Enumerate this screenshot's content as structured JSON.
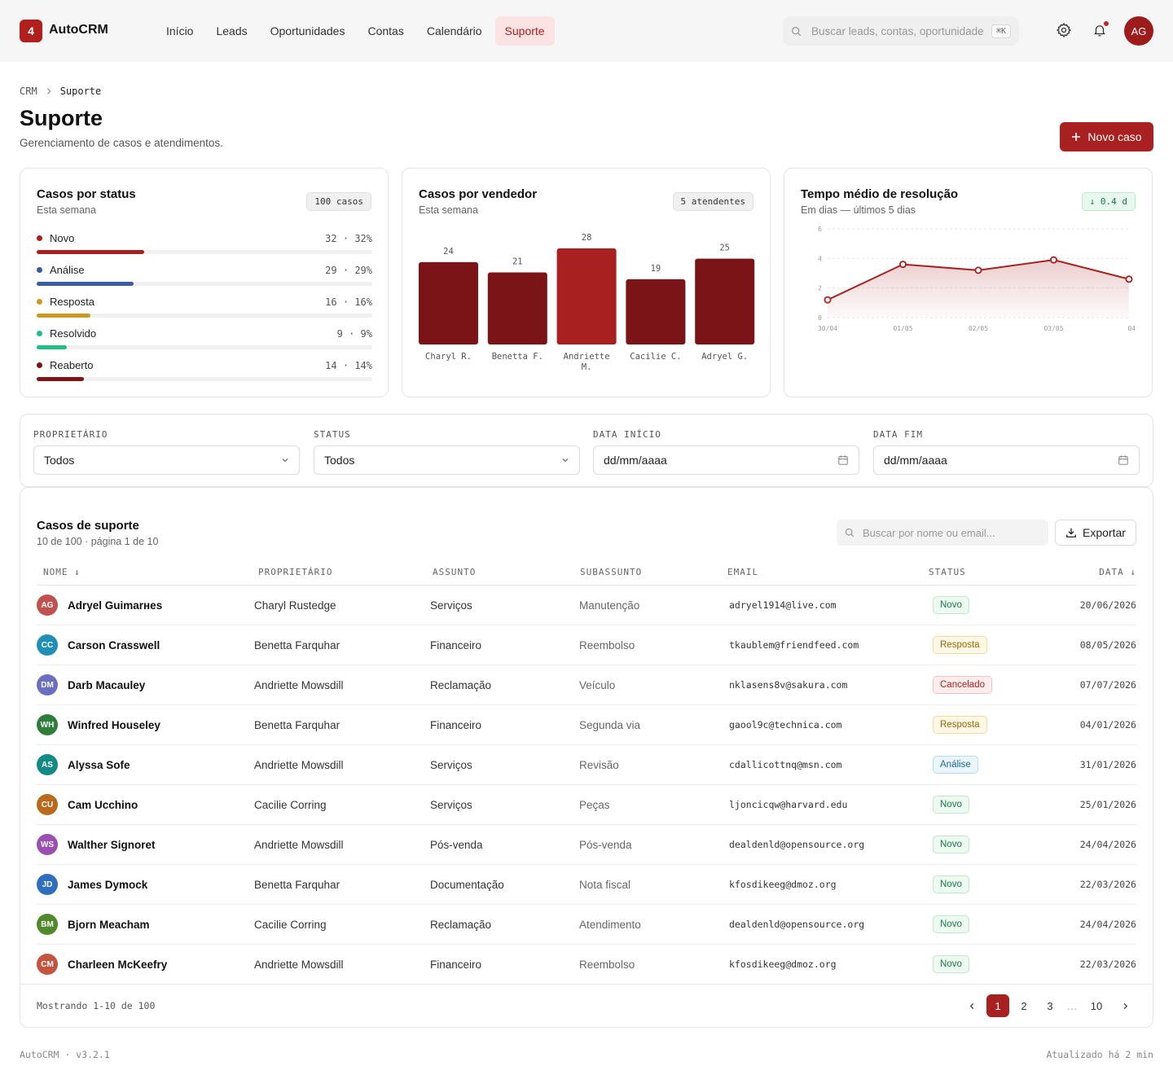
{
  "app": {
    "logo_badge": "4",
    "name": "AutoCRM"
  },
  "nav": [
    {
      "label": "Início",
      "active": false
    },
    {
      "label": "Leads",
      "active": false
    },
    {
      "label": "Oportunidades",
      "active": false
    },
    {
      "label": "Contas",
      "active": false
    },
    {
      "label": "Calendário",
      "active": false
    },
    {
      "label": "Suporte",
      "active": true
    }
  ],
  "search": {
    "placeholder": "Buscar leads, contas, oportunidade",
    "shortcut": "⌘K"
  },
  "user": {
    "initials": "AG"
  },
  "breadcrumb": [
    "CRM",
    "Suporte"
  ],
  "page": {
    "title": "Suporte",
    "subtitle": "Gerenciamento de casos e atendimentos.",
    "new_button": "Novo caso"
  },
  "status_card": {
    "title": "Casos por status",
    "subtitle": "Esta semana",
    "badge": "100 casos",
    "items": [
      {
        "label": "Novo",
        "count": "32",
        "pct": "32%",
        "value": 0.32,
        "color": "#a8201f"
      },
      {
        "label": "Análise",
        "count": "29",
        "pct": "29%",
        "value": 0.29,
        "color": "#3b5ba5"
      },
      {
        "label": "Resposta",
        "count": "16",
        "pct": "16%",
        "value": 0.16,
        "color": "#c99a1e"
      },
      {
        "label": "Resolvido",
        "count": "9",
        "pct": "9%",
        "value": 0.09,
        "color": "#1fbf84"
      },
      {
        "label": "Reaberto",
        "count": "14",
        "pct": "14%",
        "value": 0.14,
        "color": "#7a1416"
      }
    ]
  },
  "vendor_card": {
    "title": "Casos por vendedor",
    "subtitle": "Esta semana",
    "badge": "5 atendentes"
  },
  "time_card": {
    "title": "Tempo médio de resolução",
    "subtitle": "Em dias — últimos 5 dias",
    "badge": "↓ 0.4 d"
  },
  "chart_data": [
    {
      "type": "bar",
      "categories": [
        "Charyl R.",
        "Benetta F.",
        "Andriette M.",
        "Cacilie C.",
        "Adryel G."
      ],
      "values": [
        24,
        21,
        28,
        19,
        25
      ],
      "highlight": "Andriette M.",
      "colors": {
        "bar": "#7a1416",
        "highlight": "#a8201f"
      }
    },
    {
      "type": "area",
      "x": [
        "30/04",
        "01/05",
        "02/05",
        "03/05",
        "04"
      ],
      "y": [
        1.2,
        3.6,
        3.2,
        3.9,
        2.6
      ],
      "yticks": [
        "0",
        "2",
        "4",
        "6"
      ],
      "ylim": [
        0,
        6
      ],
      "grid": true,
      "color": "#a8201f"
    }
  ],
  "filters": [
    {
      "label": "PROPRIETÁRIO",
      "value": "Todos",
      "icon": "chevron-down-icon"
    },
    {
      "label": "STATUS",
      "value": "Todos",
      "icon": "chevron-down-icon"
    },
    {
      "label": "DATA INÍCIO",
      "value": "dd/mm/aaaa",
      "icon": "calendar-icon"
    },
    {
      "label": "DATA FIM",
      "value": "dd/mm/aaaa",
      "icon": "calendar-icon"
    }
  ],
  "table": {
    "title": "Casos de suporte",
    "subtitle": "10 de 100 · página 1 de 10",
    "search_placeholder": "Buscar por nome ou email...",
    "export_label": "Exportar",
    "columns": [
      "NOME ↓",
      "PROPRIETÁRIO",
      "ASSUNTO",
      "SUBASSUNTO",
      "EMAIL",
      "STATUS",
      "DATA ↓"
    ],
    "rows": [
      {
        "initials": "AG",
        "avatar_color": "#c0514f",
        "name": "Adryel Guimarнes",
        "owner": "Charyl Rustedge",
        "subject": "Serviços",
        "subsubject": "Manutenção",
        "email": "adryel1914@live.com",
        "status": "Novo",
        "date": "20/06/2026"
      },
      {
        "initials": "CC",
        "avatar_color": "#1f8fb5",
        "name": "Carson Crasswell",
        "owner": "Benetta Farquhar",
        "subject": "Financeiro",
        "subsubject": "Reembolso",
        "email": "tkaublem@friendfeed.com",
        "status": "Resposta",
        "date": "08/05/2026"
      },
      {
        "initials": "DM",
        "avatar_color": "#6a6fc2",
        "name": "Darb Macauley",
        "owner": "Andriette Mowsdill",
        "subject": "Reclamação",
        "subsubject": "Veículo",
        "email": "nklasens8v@sakura.com",
        "status": "Cancelado",
        "date": "07/07/2026"
      },
      {
        "initials": "WH",
        "avatar_color": "#2f7d3a",
        "name": "Winfred Houseley",
        "owner": "Benetta Farquhar",
        "subject": "Financeiro",
        "subsubject": "Segunda via",
        "email": "gaool9c@technica.com",
        "status": "Resposta",
        "date": "04/01/2026"
      },
      {
        "initials": "AS",
        "avatar_color": "#138a86",
        "name": "Alyssa Sofe",
        "owner": "Andriette Mowsdill",
        "subject": "Serviços",
        "subsubject": "Revisão",
        "email": "cdallicottnq@msn.com",
        "status": "Análise",
        "date": "31/01/2026"
      },
      {
        "initials": "CU",
        "avatar_color": "#b96a1c",
        "name": "Cam Ucchino",
        "owner": "Cacilie Corring",
        "subject": "Serviços",
        "subsubject": "Peças",
        "email": "ljoncicqw@harvard.edu",
        "status": "Novo",
        "date": "25/01/2026"
      },
      {
        "initials": "WS",
        "avatar_color": "#9b4fb0",
        "name": "Walther Signoret",
        "owner": "Andriette Mowsdill",
        "subject": "Pós-venda",
        "subsubject": "Pós-venda",
        "email": "dealdenld@opensource.org",
        "status": "Novo",
        "date": "24/04/2026"
      },
      {
        "initials": "JD",
        "avatar_color": "#2f6fc0",
        "name": "James Dymock",
        "owner": "Benetta Farquhar",
        "subject": "Documentação",
        "subsubject": "Nota fiscal",
        "email": "kfosdikeeg@dmoz.org",
        "status": "Novo",
        "date": "22/03/2026"
      },
      {
        "initials": "BM",
        "avatar_color": "#4f8a2a",
        "name": "Bjorn Meacham",
        "owner": "Cacilie Corring",
        "subject": "Reclamação",
        "subsubject": "Atendimento",
        "email": "dealdenld@opensource.org",
        "status": "Novo",
        "date": "24/04/2026"
      },
      {
        "initials": "CM",
        "avatar_color": "#c4543e",
        "name": "Charleen McKeefry",
        "owner": "Andriette Mowsdill",
        "subject": "Financeiro",
        "subsubject": "Reembolso",
        "email": "kfosdikeeg@dmoz.org",
        "status": "Novo",
        "date": "22/03/2026"
      }
    ],
    "status_styles": {
      "Novo": {
        "bg": "#ecfaf1",
        "border": "#bfe8cf",
        "color": "#1a7a43"
      },
      "Resposta": {
        "bg": "#fff8e6",
        "border": "#f2dc9c",
        "color": "#9a6a00"
      },
      "Cancelado": {
        "bg": "#fdeeee",
        "border": "#f3c2c2",
        "color": "#b0201f"
      },
      "Análise": {
        "bg": "#eaf5fc",
        "border": "#b9dcf1",
        "color": "#1d6a96"
      }
    },
    "footer": "Mostrando 1-10 de 100",
    "pages": [
      "1",
      "2",
      "3",
      "…",
      "10"
    ],
    "current_page": "1"
  },
  "footer": {
    "left": "AutoCRM · v3.2.1",
    "right": "Atualizado há 2 min"
  }
}
